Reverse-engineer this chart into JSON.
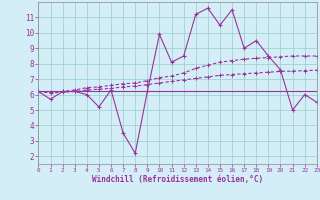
{
  "x_main": [
    0,
    1,
    2,
    3,
    4,
    5,
    6,
    7,
    8,
    9,
    10,
    11,
    12,
    13,
    14,
    15,
    16,
    17,
    18,
    19,
    20,
    21,
    22,
    23
  ],
  "y_main": [
    6.2,
    5.7,
    6.2,
    6.2,
    6.0,
    5.2,
    6.3,
    3.5,
    2.2,
    6.2,
    9.9,
    8.1,
    8.5,
    11.2,
    11.6,
    10.5,
    11.5,
    9.0,
    9.5,
    8.5,
    7.6,
    5.0,
    6.0,
    5.5
  ],
  "y_upper": [
    6.2,
    6.15,
    6.2,
    6.3,
    6.45,
    6.5,
    6.6,
    6.7,
    6.75,
    6.9,
    7.1,
    7.2,
    7.4,
    7.7,
    7.9,
    8.1,
    8.2,
    8.3,
    8.35,
    8.4,
    8.45,
    8.5,
    8.5,
    8.5
  ],
  "y_lower": [
    6.2,
    6.1,
    6.15,
    6.2,
    6.3,
    6.35,
    6.4,
    6.5,
    6.55,
    6.65,
    6.75,
    6.85,
    6.95,
    7.05,
    7.15,
    7.25,
    7.3,
    7.35,
    7.4,
    7.45,
    7.5,
    7.52,
    7.55,
    7.58
  ],
  "y_hline": 6.2,
  "xlim": [
    0,
    23
  ],
  "ylim": [
    1.5,
    12.0
  ],
  "yticks": [
    2,
    3,
    4,
    5,
    6,
    7,
    8,
    9,
    10,
    11
  ],
  "xticks": [
    0,
    1,
    2,
    3,
    4,
    5,
    6,
    7,
    8,
    9,
    10,
    11,
    12,
    13,
    14,
    15,
    16,
    17,
    18,
    19,
    20,
    21,
    22,
    23
  ],
  "xlabel": "Windchill (Refroidissement éolien,°C)",
  "line_color": "#993399",
  "bg_color": "#d4eef7",
  "grid_color": "#aacccc",
  "font_color": "#993399"
}
